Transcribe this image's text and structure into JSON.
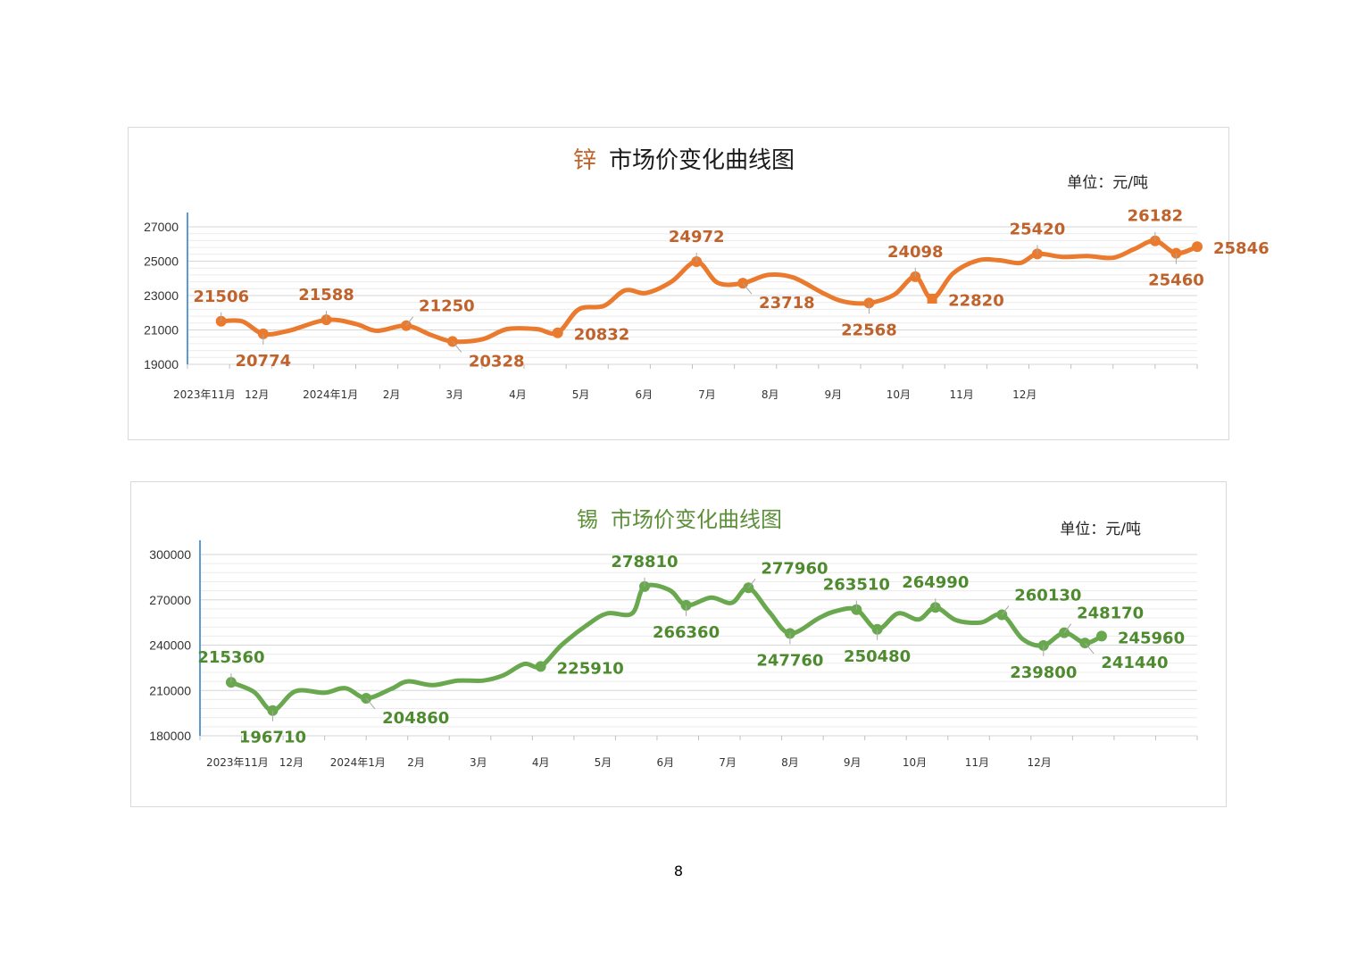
{
  "page_number": "8",
  "chart_data": [
    {
      "type": "line",
      "title_metal": "锌",
      "title_rest": "市场价变化曲线图",
      "unit_label": "单位：元/吨",
      "series_color": "#e97a2e",
      "metal_title_color": "#c0622b",
      "title_color": "#1a1a1a",
      "label_color": "#c0622b",
      "ylim": [
        19000,
        27000
      ],
      "y_ticks": [
        19000,
        21000,
        23000,
        25000,
        27000
      ],
      "y_tick_labels": [
        "19000",
        "21000",
        "23000",
        "25000",
        "27000"
      ],
      "x_range": [
        0,
        24
      ],
      "x_ticks": [
        {
          "x": 0.4,
          "label": "2023年11月"
        },
        {
          "x": 1.65,
          "label": "12月"
        },
        {
          "x": 3.4,
          "label": "2024年1月"
        },
        {
          "x": 4.85,
          "label": "2月"
        },
        {
          "x": 6.35,
          "label": "3月"
        },
        {
          "x": 7.85,
          "label": "4月"
        },
        {
          "x": 9.35,
          "label": "5月"
        },
        {
          "x": 10.85,
          "label": "6月"
        },
        {
          "x": 12.35,
          "label": "7月"
        },
        {
          "x": 13.85,
          "label": "8月"
        },
        {
          "x": 15.35,
          "label": "9月"
        },
        {
          "x": 16.9,
          "label": "10月"
        },
        {
          "x": 18.4,
          "label": "11月"
        },
        {
          "x": 19.9,
          "label": "12月"
        }
      ],
      "curve": [
        [
          0.8,
          21506
        ],
        [
          1.3,
          21500
        ],
        [
          1.8,
          20774
        ],
        [
          2.4,
          20950
        ],
        [
          3.3,
          21588
        ],
        [
          4.0,
          21350
        ],
        [
          4.5,
          20950
        ],
        [
          5.2,
          21250
        ],
        [
          5.8,
          20700
        ],
        [
          6.3,
          20328
        ],
        [
          7.0,
          20450
        ],
        [
          7.6,
          21050
        ],
        [
          8.3,
          21050
        ],
        [
          8.8,
          20832
        ],
        [
          9.3,
          22200
        ],
        [
          9.9,
          22400
        ],
        [
          10.4,
          23300
        ],
        [
          10.9,
          23150
        ],
        [
          11.5,
          23800
        ],
        [
          12.1,
          24972
        ],
        [
          12.6,
          23750
        ],
        [
          13.2,
          23718
        ],
        [
          13.8,
          24200
        ],
        [
          14.4,
          24050
        ],
        [
          15.1,
          23150
        ],
        [
          15.6,
          22650
        ],
        [
          16.2,
          22568
        ],
        [
          16.8,
          23050
        ],
        [
          17.3,
          24098
        ],
        [
          17.7,
          22820
        ],
        [
          18.2,
          24300
        ],
        [
          18.8,
          25050
        ],
        [
          19.3,
          25050
        ],
        [
          19.8,
          24900
        ],
        [
          20.2,
          25420
        ],
        [
          20.8,
          25250
        ],
        [
          21.4,
          25300
        ],
        [
          22.0,
          25200
        ],
        [
          22.5,
          25700
        ],
        [
          23.0,
          26182
        ],
        [
          23.5,
          25460
        ],
        [
          24.0,
          25846
        ]
      ],
      "points": [
        {
          "x": 0.8,
          "value": 21506,
          "label": "21506",
          "label_at": "above",
          "marker": "circle"
        },
        {
          "x": 1.8,
          "value": 20774,
          "label": "20774",
          "label_at": "below",
          "marker": "circle"
        },
        {
          "x": 3.3,
          "value": 21588,
          "label": "21588",
          "label_at": "above",
          "marker": "circle"
        },
        {
          "x": 5.2,
          "value": 21250,
          "label": "21250",
          "label_at": "above-right",
          "marker": "circle"
        },
        {
          "x": 6.3,
          "value": 20328,
          "label": "20328",
          "label_at": "below-right",
          "marker": "circle"
        },
        {
          "x": 8.8,
          "value": 20832,
          "label": "20832",
          "label_at": "right",
          "marker": "circle"
        },
        {
          "x": 12.1,
          "value": 24972,
          "label": "24972",
          "label_at": "above",
          "marker": "circle"
        },
        {
          "x": 13.2,
          "value": 23718,
          "label": "23718",
          "label_at": "below-right",
          "marker": "circle"
        },
        {
          "x": 16.2,
          "value": 22568,
          "label": "22568",
          "label_at": "below",
          "marker": "circle"
        },
        {
          "x": 17.3,
          "value": 24098,
          "label": "24098",
          "label_at": "above",
          "marker": "circle"
        },
        {
          "x": 17.7,
          "value": 22820,
          "label": "22820",
          "label_at": "right",
          "marker": "square"
        },
        {
          "x": 20.2,
          "value": 25420,
          "label": "25420",
          "label_at": "above",
          "marker": "circle"
        },
        {
          "x": 23.0,
          "value": 26182,
          "label": "26182",
          "label_at": "above",
          "marker": "circle"
        },
        {
          "x": 23.5,
          "value": 25460,
          "label": "25460",
          "label_at": "below",
          "marker": "circle"
        },
        {
          "x": 24.0,
          "value": 25846,
          "label": "25846",
          "label_at": "right",
          "marker": "circle"
        }
      ]
    },
    {
      "type": "line",
      "title_metal": "锡",
      "title_rest": "市场价变化曲线图",
      "unit_label": "单位：元/吨",
      "series_color": "#6aa84f",
      "metal_title_color": "#5c8f38",
      "title_color": "#5c8f38",
      "label_color": "#4e8a2e",
      "ylim": [
        180000,
        300000
      ],
      "y_ticks": [
        180000,
        210000,
        240000,
        270000,
        300000
      ],
      "y_tick_labels": [
        "180000",
        "210000",
        "240000",
        "270000",
        "300000"
      ],
      "x_range": [
        0,
        24
      ],
      "x_ticks": [
        {
          "x": 0.9,
          "label": "2023年11月"
        },
        {
          "x": 2.2,
          "label": "12月"
        },
        {
          "x": 3.8,
          "label": "2024年1月"
        },
        {
          "x": 5.2,
          "label": "2月"
        },
        {
          "x": 6.7,
          "label": "3月"
        },
        {
          "x": 8.2,
          "label": "4月"
        },
        {
          "x": 9.7,
          "label": "5月"
        },
        {
          "x": 11.2,
          "label": "6月"
        },
        {
          "x": 12.7,
          "label": "7月"
        },
        {
          "x": 14.2,
          "label": "8月"
        },
        {
          "x": 15.7,
          "label": "9月"
        },
        {
          "x": 17.2,
          "label": "10月"
        },
        {
          "x": 18.7,
          "label": "11月"
        },
        {
          "x": 20.2,
          "label": "12月"
        }
      ],
      "curve": [
        [
          0.75,
          215360
        ],
        [
          1.3,
          209000
        ],
        [
          1.75,
          196710
        ],
        [
          2.3,
          209500
        ],
        [
          3.0,
          208500
        ],
        [
          3.5,
          211500
        ],
        [
          4.0,
          204860
        ],
        [
          4.6,
          211000
        ],
        [
          5.0,
          216000
        ],
        [
          5.6,
          213500
        ],
        [
          6.2,
          216500
        ],
        [
          6.8,
          216500
        ],
        [
          7.3,
          220000
        ],
        [
          7.8,
          227500
        ],
        [
          8.2,
          225910
        ],
        [
          8.7,
          240000
        ],
        [
          9.3,
          253000
        ],
        [
          9.8,
          261000
        ],
        [
          10.4,
          261000
        ],
        [
          10.7,
          278810
        ],
        [
          11.3,
          276500
        ],
        [
          11.7,
          266360
        ],
        [
          12.3,
          271500
        ],
        [
          12.8,
          268000
        ],
        [
          13.2,
          277960
        ],
        [
          13.7,
          262000
        ],
        [
          14.2,
          247760
        ],
        [
          14.9,
          258000
        ],
        [
          15.3,
          262500
        ],
        [
          15.8,
          263510
        ],
        [
          16.3,
          250480
        ],
        [
          16.8,
          261000
        ],
        [
          17.3,
          257000
        ],
        [
          17.7,
          264990
        ],
        [
          18.2,
          256500
        ],
        [
          18.8,
          255000
        ],
        [
          19.3,
          260130
        ],
        [
          19.8,
          244000
        ],
        [
          20.3,
          239800
        ],
        [
          20.8,
          248170
        ],
        [
          21.3,
          241440
        ],
        [
          21.7,
          245960
        ]
      ],
      "points": [
        {
          "x": 0.75,
          "value": 215360,
          "label": "215360",
          "label_at": "above",
          "marker": "circle"
        },
        {
          "x": 1.75,
          "value": 196710,
          "label": "196710",
          "label_at": "below",
          "marker": "circle"
        },
        {
          "x": 4.0,
          "value": 204860,
          "label": "204860",
          "label_at": "below-right",
          "marker": "circle"
        },
        {
          "x": 8.2,
          "value": 225910,
          "label": "225910",
          "label_at": "right",
          "marker": "circle"
        },
        {
          "x": 10.7,
          "value": 278810,
          "label": "278810",
          "label_at": "above",
          "marker": "circle"
        },
        {
          "x": 11.7,
          "value": 266360,
          "label": "266360",
          "label_at": "below",
          "marker": "circle"
        },
        {
          "x": 13.2,
          "value": 277960,
          "label": "277960",
          "label_at": "above-right",
          "marker": "circle"
        },
        {
          "x": 14.2,
          "value": 247760,
          "label": "247760",
          "label_at": "below",
          "marker": "circle"
        },
        {
          "x": 15.8,
          "value": 263510,
          "label": "263510",
          "label_at": "above",
          "marker": "circle"
        },
        {
          "x": 16.3,
          "value": 250480,
          "label": "250480",
          "label_at": "below",
          "marker": "circle"
        },
        {
          "x": 17.7,
          "value": 264990,
          "label": "264990",
          "label_at": "above",
          "marker": "circle"
        },
        {
          "x": 19.3,
          "value": 260130,
          "label": "260130",
          "label_at": "above-right",
          "marker": "circle"
        },
        {
          "x": 20.3,
          "value": 239800,
          "label": "239800",
          "label_at": "below",
          "marker": "circle"
        },
        {
          "x": 20.8,
          "value": 248170,
          "label": "248170",
          "label_at": "above-right",
          "marker": "circle"
        },
        {
          "x": 21.3,
          "value": 241440,
          "label": "241440",
          "label_at": "below-right",
          "marker": "circle"
        },
        {
          "x": 21.7,
          "value": 245960,
          "label": "245960",
          "label_at": "right",
          "marker": "circle"
        }
      ]
    }
  ]
}
